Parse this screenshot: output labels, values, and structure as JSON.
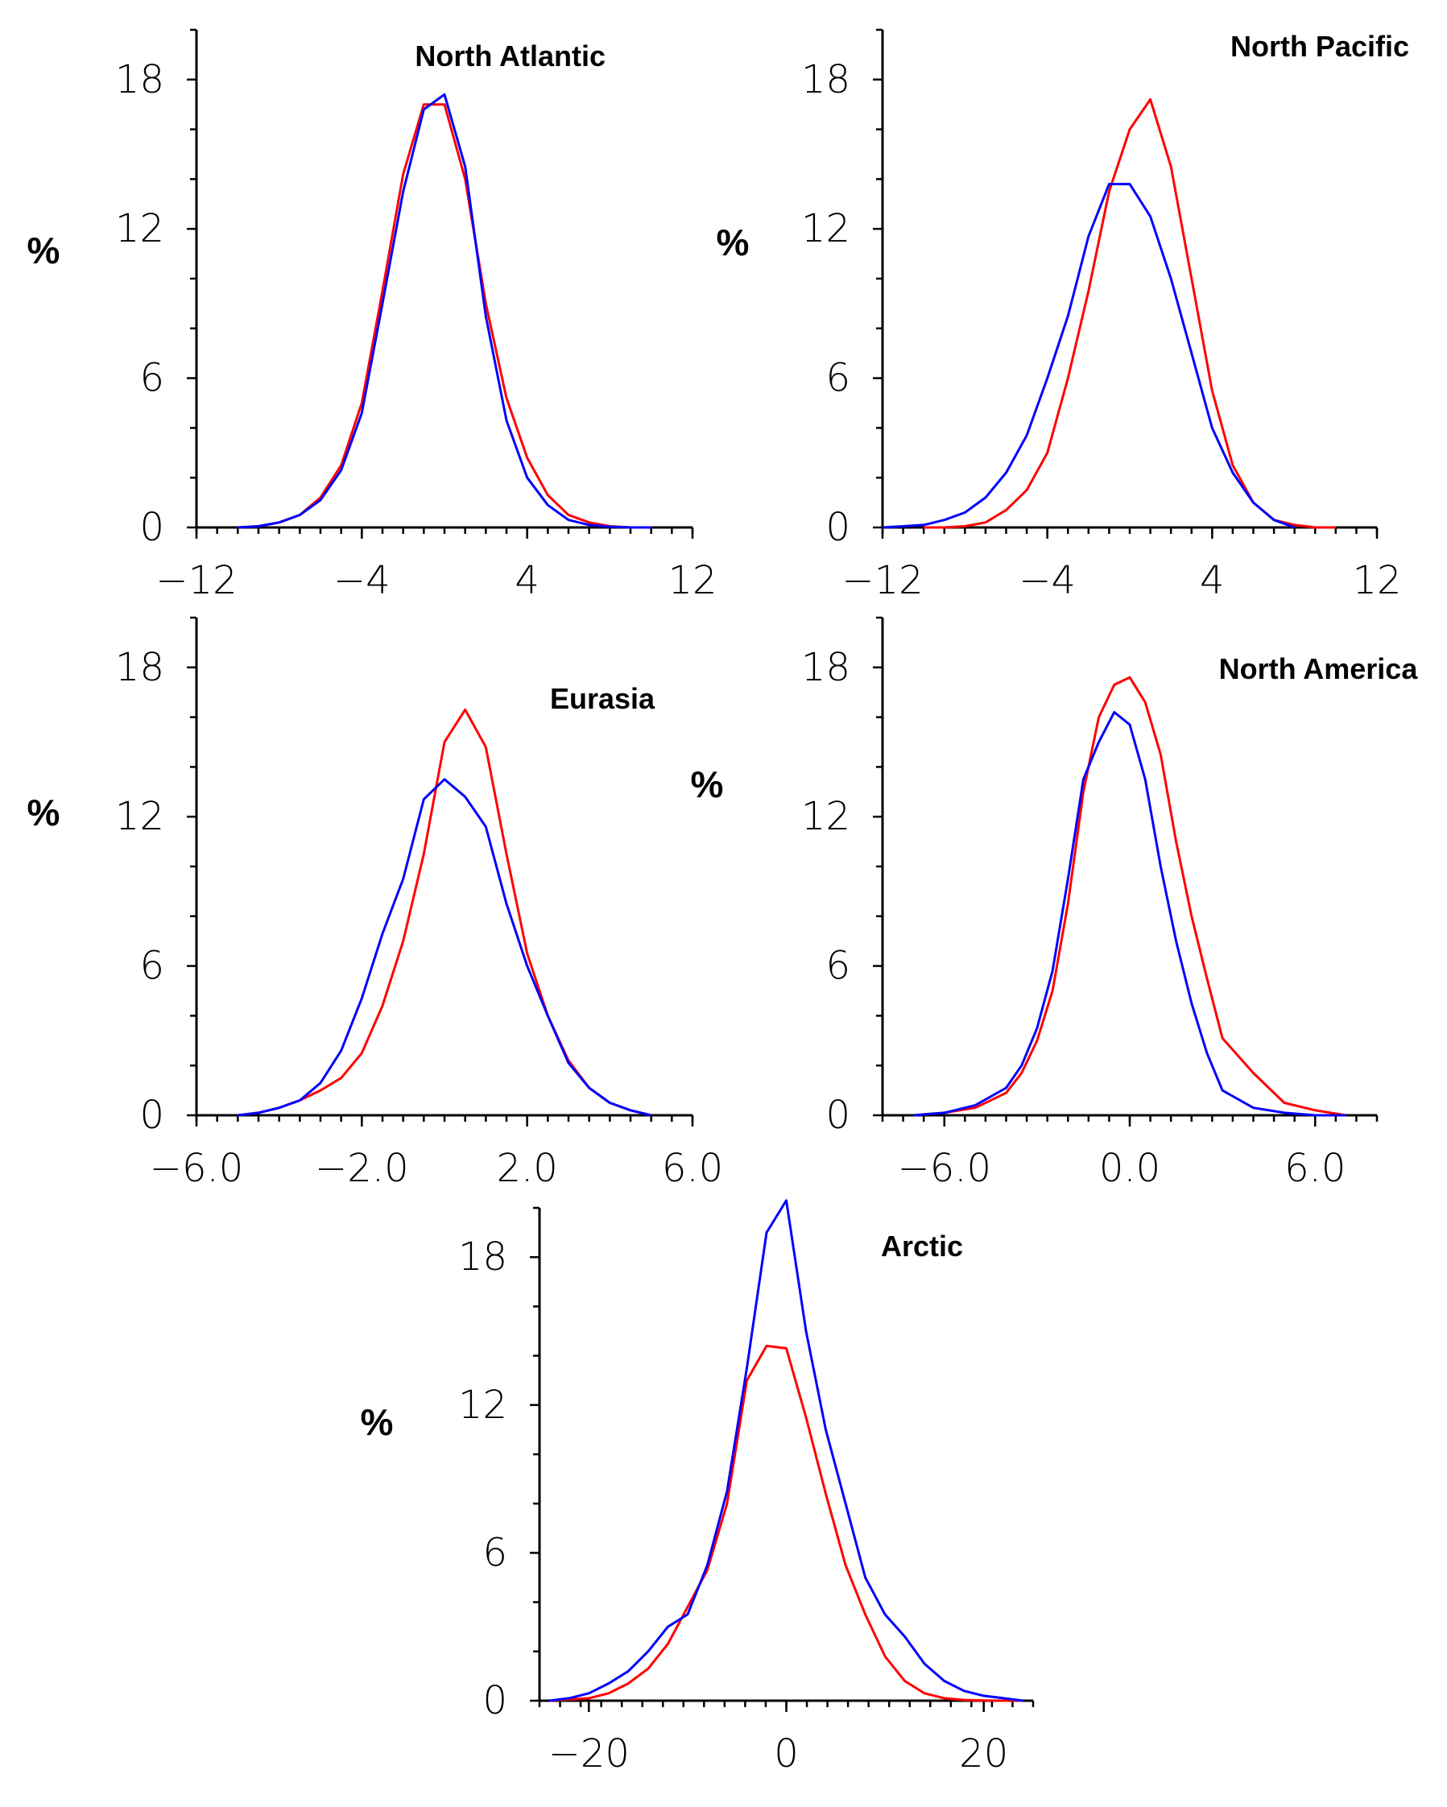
{
  "colors": {
    "series_red": "#ff0000",
    "series_blue": "#0000ff"
  },
  "chart_data": [
    {
      "type": "line",
      "title": "North Atlantic",
      "ylabel": "%",
      "xlim": [
        -12,
        12
      ],
      "ylim": [
        0,
        20
      ],
      "xticks": [
        -12,
        -4,
        4,
        12
      ],
      "xtick_labels": [
        "−12",
        "−4",
        "4",
        "12"
      ],
      "yticks": [
        0,
        6,
        12,
        18
      ],
      "ytick_labels": [
        "0",
        "6",
        "12",
        "18"
      ],
      "series": [
        {
          "name": "red",
          "color": "#ff0000",
          "x": [
            -10,
            -9,
            -8,
            -7,
            -6,
            -5,
            -4,
            -3,
            -2,
            -1,
            0,
            1,
            2,
            3,
            4,
            5,
            6,
            7,
            8,
            9,
            10
          ],
          "y": [
            0,
            0.05,
            0.2,
            0.5,
            1.2,
            2.5,
            5.0,
            9.5,
            14.2,
            17.0,
            17.0,
            14.0,
            9.0,
            5.2,
            2.8,
            1.3,
            0.5,
            0.2,
            0.05,
            0,
            0
          ]
        },
        {
          "name": "blue",
          "color": "#0000ff",
          "x": [
            -10,
            -9,
            -8,
            -7,
            -6,
            -5,
            -4,
            -3,
            -2,
            -1,
            0,
            1,
            2,
            3,
            4,
            5,
            6,
            7,
            8,
            9,
            10
          ],
          "y": [
            0,
            0.05,
            0.2,
            0.5,
            1.1,
            2.3,
            4.6,
            9.0,
            13.5,
            16.8,
            17.4,
            14.5,
            8.5,
            4.3,
            2.0,
            0.9,
            0.3,
            0.1,
            0.03,
            0,
            0
          ]
        }
      ]
    },
    {
      "type": "line",
      "title": "North Pacific",
      "ylabel": "%",
      "xlim": [
        -12,
        12
      ],
      "ylim": [
        0,
        20
      ],
      "xticks": [
        -12,
        -4,
        4,
        12
      ],
      "xtick_labels": [
        "−12",
        "−4",
        "4",
        "12"
      ],
      "yticks": [
        0,
        6,
        12,
        18
      ],
      "ytick_labels": [
        "0",
        "6",
        "12",
        "18"
      ],
      "series": [
        {
          "name": "red",
          "color": "#ff0000",
          "x": [
            -10,
            -9,
            -8,
            -7,
            -6,
            -5,
            -4,
            -3,
            -2,
            -1,
            0,
            1,
            2,
            3,
            4,
            5,
            6,
            7,
            8,
            9,
            10
          ],
          "y": [
            0,
            0,
            0.05,
            0.2,
            0.7,
            1.5,
            3.0,
            6.0,
            9.5,
            13.5,
            16.0,
            17.2,
            14.5,
            10.0,
            5.5,
            2.5,
            1.0,
            0.3,
            0.1,
            0,
            0
          ]
        },
        {
          "name": "blue",
          "color": "#0000ff",
          "x": [
            -12,
            -11,
            -10,
            -9,
            -8,
            -7,
            -6,
            -5,
            -4,
            -3,
            -2,
            -1,
            0,
            1,
            2,
            3,
            4,
            5,
            6,
            7,
            8
          ],
          "y": [
            0,
            0.05,
            0.1,
            0.3,
            0.6,
            1.2,
            2.2,
            3.7,
            6.0,
            8.5,
            11.7,
            13.8,
            13.8,
            12.5,
            10.0,
            7.0,
            4.0,
            2.2,
            1.0,
            0.3,
            0
          ]
        }
      ]
    },
    {
      "type": "line",
      "title": "Eurasia",
      "ylabel": "%",
      "xlim": [
        -6,
        6
      ],
      "ylim": [
        0,
        20
      ],
      "xticks": [
        -6,
        -2,
        2,
        6
      ],
      "xtick_labels": [
        "−6.0",
        "−2.0",
        "2.0",
        "6.0"
      ],
      "yticks": [
        0,
        6,
        12,
        18
      ],
      "ytick_labels": [
        "0",
        "6",
        "12",
        "18"
      ],
      "series": [
        {
          "name": "red",
          "color": "#ff0000",
          "x": [
            -5,
            -4.5,
            -4,
            -3.5,
            -3,
            -2.5,
            -2,
            -1.5,
            -1,
            -0.5,
            0,
            0.5,
            1,
            1.5,
            2,
            2.5,
            3,
            3.5,
            4,
            4.5,
            5
          ],
          "y": [
            0,
            0.1,
            0.3,
            0.6,
            1.0,
            1.5,
            2.5,
            4.4,
            7.0,
            10.5,
            15.0,
            16.3,
            14.8,
            10.5,
            6.5,
            4.0,
            2.2,
            1.1,
            0.5,
            0.2,
            0
          ]
        },
        {
          "name": "blue",
          "color": "#0000ff",
          "x": [
            -5,
            -4.5,
            -4,
            -3.5,
            -3,
            -2.5,
            -2,
            -1.5,
            -1,
            -0.5,
            0,
            0.5,
            1,
            1.5,
            2,
            2.5,
            3,
            3.5,
            4,
            4.5,
            5
          ],
          "y": [
            0,
            0.1,
            0.3,
            0.6,
            1.3,
            2.6,
            4.7,
            7.3,
            9.5,
            12.7,
            13.5,
            12.8,
            11.6,
            8.5,
            6.0,
            4.0,
            2.1,
            1.1,
            0.5,
            0.2,
            0
          ]
        }
      ]
    },
    {
      "type": "line",
      "title": "North America",
      "ylabel": "%",
      "xlim": [
        -8,
        8
      ],
      "ylim": [
        0,
        20
      ],
      "xticks": [
        -6,
        0,
        6
      ],
      "xtick_labels": [
        "−6.0",
        "0.0",
        "6.0"
      ],
      "yticks": [
        0,
        6,
        12,
        18
      ],
      "ytick_labels": [
        "0",
        "6",
        "12",
        "18"
      ],
      "series": [
        {
          "name": "red",
          "color": "#ff0000",
          "x": [
            -7,
            -6,
            -5,
            -4,
            -3.5,
            -3,
            -2.5,
            -2,
            -1.5,
            -1,
            -0.5,
            0,
            0.5,
            1,
            1.5,
            2,
            2.5,
            3,
            4,
            5,
            6,
            7
          ],
          "y": [
            0,
            0.1,
            0.3,
            0.9,
            1.7,
            3.0,
            5.0,
            8.5,
            13.0,
            16.0,
            17.3,
            17.6,
            16.6,
            14.5,
            11.0,
            8.0,
            5.5,
            3.1,
            1.7,
            0.5,
            0.2,
            0
          ]
        },
        {
          "name": "blue",
          "color": "#0000ff",
          "x": [
            -7,
            -6,
            -5,
            -4,
            -3.5,
            -3,
            -2.5,
            -2,
            -1.5,
            -1,
            -0.5,
            0,
            0.5,
            1,
            1.5,
            2,
            2.5,
            3,
            4,
            5,
            6,
            7
          ],
          "y": [
            0,
            0.1,
            0.4,
            1.1,
            2.0,
            3.5,
            5.8,
            9.5,
            13.5,
            15.0,
            16.2,
            15.7,
            13.5,
            10.0,
            7.0,
            4.5,
            2.5,
            1.0,
            0.3,
            0.1,
            0,
            0
          ]
        }
      ]
    },
    {
      "type": "line",
      "title": "Arctic",
      "ylabel": "%",
      "xlim": [
        -25,
        25
      ],
      "ylim": [
        0,
        20
      ],
      "xticks": [
        -20,
        0,
        20
      ],
      "xtick_labels": [
        "−20",
        "0",
        "20"
      ],
      "yticks": [
        0,
        6,
        12,
        18
      ],
      "ytick_labels": [
        "0",
        "6",
        "12",
        "18"
      ],
      "series": [
        {
          "name": "red",
          "color": "#ff0000",
          "x": [
            -24,
            -22,
            -20,
            -18,
            -16,
            -14,
            -12,
            -10,
            -8,
            -6,
            -4,
            -2,
            0,
            2,
            4,
            6,
            8,
            10,
            12,
            14,
            16,
            18,
            20,
            22,
            24
          ],
          "y": [
            0,
            0.05,
            0.1,
            0.3,
            0.7,
            1.3,
            2.3,
            3.8,
            5.3,
            8.0,
            13.0,
            14.4,
            14.3,
            11.5,
            8.4,
            5.5,
            3.5,
            1.8,
            0.8,
            0.3,
            0.1,
            0.03,
            0.01,
            0,
            0
          ]
        },
        {
          "name": "blue",
          "color": "#0000ff",
          "x": [
            -24,
            -22,
            -20,
            -18,
            -16,
            -14,
            -12,
            -10,
            -8,
            -6,
            -4,
            -2,
            0,
            2,
            4,
            6,
            8,
            10,
            12,
            14,
            16,
            18,
            20,
            22,
            24
          ],
          "y": [
            0,
            0.1,
            0.3,
            0.7,
            1.2,
            2.0,
            3.0,
            3.5,
            5.5,
            8.5,
            13.5,
            19.0,
            20.3,
            15.0,
            11.0,
            8.0,
            5.0,
            3.5,
            2.6,
            1.5,
            0.8,
            0.4,
            0.2,
            0.1,
            0
          ]
        }
      ]
    }
  ]
}
